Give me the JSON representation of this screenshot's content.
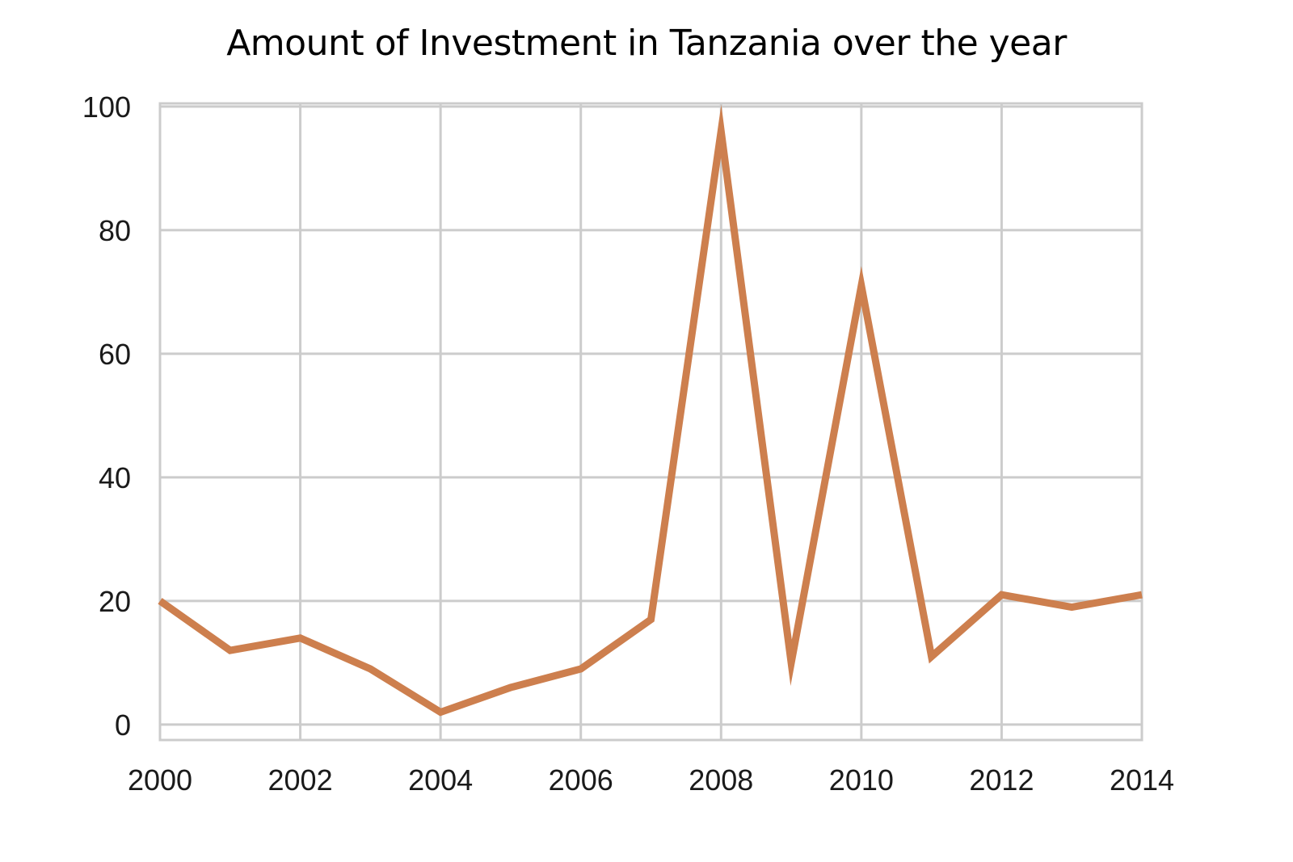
{
  "chart_data": {
    "type": "line",
    "title": "Amount of Investment in Tanzania over the year",
    "xlabel": "",
    "ylabel": "",
    "x": [
      2000,
      2001,
      2002,
      2003,
      2004,
      2005,
      2006,
      2007,
      2008,
      2009,
      2010,
      2011,
      2012,
      2013,
      2014
    ],
    "x_ticks": [
      "2000",
      "2002",
      "2004",
      "2006",
      "2008",
      "2010",
      "2012",
      "2014"
    ],
    "y_ticks": [
      "0",
      "20",
      "40",
      "60",
      "80",
      "100"
    ],
    "xlim": [
      2000,
      2014
    ],
    "ylim": [
      -2.5,
      100.5
    ],
    "grid": true,
    "legend": "none",
    "series": [
      {
        "values": [
          20,
          12,
          14,
          9,
          2,
          6,
          9,
          17,
          96,
          10,
          71,
          11,
          21,
          19,
          21
        ],
        "color": "#cd7f4e"
      }
    ]
  }
}
